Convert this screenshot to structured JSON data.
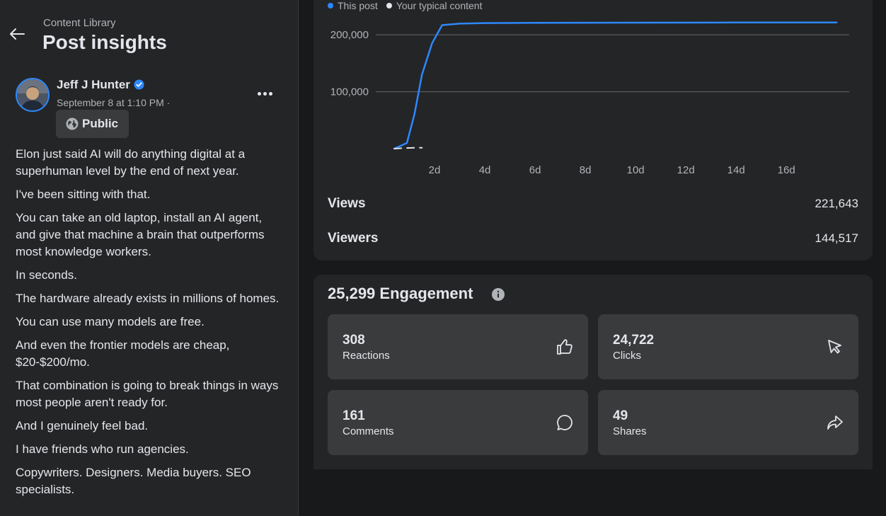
{
  "nav": {
    "breadcrumb": "Content Library",
    "title": "Post insights"
  },
  "post": {
    "author": "Jeff J Hunter",
    "date": "September 8 at 1:10 PM ·",
    "audience": "Public",
    "paragraphs": [
      "Elon just said AI will do anything digital at a superhuman level by the end of next year.",
      "I've been sitting with that.",
      "You can take an old laptop, install an AI agent, and give that machine a brain that outperforms most knowledge workers.",
      "In seconds.",
      "The hardware already exists in millions of homes.",
      "You can use many models are free.",
      "And even the frontier models are cheap, $20-$200/mo.",
      "That combination is going to break things in ways most people aren't ready for.",
      "And I genuinely feel bad.",
      "I have friends who run agencies.",
      "Copywriters. Designers. Media buyers. SEO specialists."
    ]
  },
  "views_card": {
    "legend": [
      {
        "label": "This post",
        "color": "#2d88ff"
      },
      {
        "label": "Your typical content",
        "color": "#e4e6eb"
      }
    ],
    "views_label": "Views",
    "views_value": "221,643",
    "viewers_label": "Viewers",
    "viewers_value": "144,517"
  },
  "chart_data": {
    "type": "line",
    "x_tick_labels": [
      "2d",
      "4d",
      "6d",
      "8d",
      "10d",
      "12d",
      "14d",
      "16d"
    ],
    "x_ticks": [
      2,
      4,
      6,
      8,
      10,
      12,
      14,
      16
    ],
    "y_tick_labels": [
      "100,000",
      "200,000"
    ],
    "y_ticks": [
      100000,
      200000
    ],
    "xlim": [
      0,
      18.5
    ],
    "ylim": [
      0,
      230000
    ],
    "grid": true,
    "series": [
      {
        "name": "This post",
        "color": "#2d88ff",
        "x": [
          0.4,
          0.9,
          1.2,
          1.5,
          1.9,
          2.3,
          3.0,
          4.0,
          6.0,
          10.0,
          14.0,
          18.0
        ],
        "y": [
          0,
          10000,
          60000,
          130000,
          185000,
          217000,
          219500,
          220500,
          221000,
          221300,
          221500,
          221643
        ]
      },
      {
        "name": "Your typical content",
        "color": "#e4e6eb",
        "dashed": true,
        "x": [
          0.4,
          0.8,
          1.2,
          1.5
        ],
        "y": [
          0,
          1000,
          1500,
          1500
        ]
      }
    ]
  },
  "engagement": {
    "title": "25,299 Engagement",
    "tiles": [
      {
        "value": "308",
        "label": "Reactions",
        "icon": "thumbs-up-icon"
      },
      {
        "value": "24,722",
        "label": "Clicks",
        "icon": "cursor-icon"
      },
      {
        "value": "161",
        "label": "Comments",
        "icon": "comment-icon"
      },
      {
        "value": "49",
        "label": "Shares",
        "icon": "share-icon"
      }
    ]
  }
}
